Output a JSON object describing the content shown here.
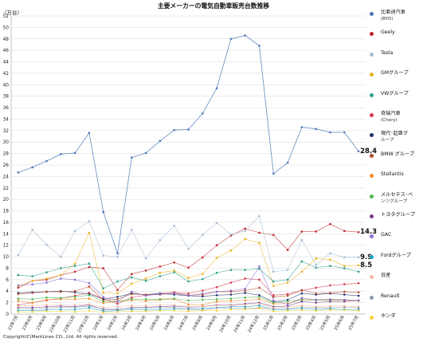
{
  "chart_data": {
    "type": "line",
    "title": "主要メーカーの電気自動車販売台数推移",
    "ylabel": "（万台）",
    "ylim": [
      0,
      52
    ],
    "yticks": [
      0,
      2,
      4,
      6,
      8,
      10,
      12,
      14,
      16,
      18,
      20,
      22,
      24,
      26,
      28,
      30,
      32,
      34,
      36,
      38,
      40,
      42,
      44,
      46,
      48,
      50,
      52
    ],
    "categories": [
      "23年7月",
      "23年8月",
      "23年9月",
      "23年10月",
      "23年11月",
      "23年12月",
      "24年1月",
      "24年2月",
      "24年3月",
      "24年4月",
      "24年5月",
      "24年6月",
      "24年7月",
      "24年8月",
      "24年9月",
      "24年10月",
      "24年11月",
      "24年12月",
      "25年1月",
      "25年2月",
      "25年3月",
      "25年4月",
      "25年5月",
      "25年6月",
      "25年7月"
    ],
    "series": [
      {
        "name": "比亜迪汽車",
        "sub": "(BYD)",
        "color": "#4a78b8",
        "values": [
          24.7,
          25.6,
          26.7,
          27.9,
          28.1,
          31.6,
          17.8,
          10.6,
          27.3,
          28.1,
          30.2,
          32.1,
          32.2,
          35.0,
          39.4,
          48.0,
          48.6,
          46.8,
          24.5,
          26.4,
          32.6,
          32.3,
          31.7,
          31.7,
          28.4
        ],
        "label": "28.4"
      },
      {
        "name": "Geely",
        "color": "#c0262d",
        "values": [
          4.6,
          5.8,
          6.0,
          6.8,
          7.4,
          8.2,
          8.0,
          4.2,
          7.0,
          7.6,
          8.3,
          9.0,
          8.1,
          9.9,
          12.0,
          13.7,
          14.9,
          14.2,
          13.8,
          11.2,
          14.4,
          14.4,
          15.7,
          14.5,
          14.3
        ],
        "label": "14.3"
      },
      {
        "name": "Tesla",
        "color": "#a4bcd6",
        "values": [
          10.3,
          14.7,
          12.1,
          10.0,
          14.5,
          16.2,
          10.2,
          10.0,
          14.7,
          9.7,
          12.9,
          15.4,
          11.4,
          13.8,
          15.9,
          13.9,
          14.5,
          17.1,
          7.4,
          7.7,
          12.9,
          8.6,
          10.6,
          9.9,
          9.9
        ],
        "label": "9.9"
      },
      {
        "name": "GMグループ",
        "color": "#e8b21c",
        "values": [
          4.9,
          5.8,
          6.2,
          6.8,
          8.8,
          14.2,
          3.7,
          3.6,
          5.3,
          6.2,
          7.2,
          7.6,
          6.3,
          7.0,
          9.8,
          11.1,
          13.1,
          12.4,
          4.9,
          5.5,
          7.4,
          9.7,
          9.5,
          8.4,
          8.5
        ],
        "label": "8.5"
      },
      {
        "name": "VWグループ",
        "color": "#2c9e8a",
        "values": [
          6.8,
          6.6,
          7.3,
          8.0,
          8.4,
          8.8,
          4.5,
          5.7,
          6.4,
          5.8,
          6.6,
          7.3,
          5.7,
          6.1,
          7.2,
          7.7,
          7.7,
          7.9,
          5.7,
          6.0,
          9.2,
          8.1,
          8.4,
          8.0,
          7.4
        ]
      },
      {
        "name": "奇瑞汽車",
        "sub": "(Chery)",
        "color": "#d5394f",
        "values": [
          1.6,
          2.0,
          2.4,
          2.8,
          3.2,
          3.7,
          2.7,
          1.8,
          2.9,
          3.3,
          3.6,
          3.8,
          3.6,
          4.1,
          4.7,
          5.5,
          6.2,
          6.0,
          3.3,
          3.5,
          4.1,
          4.6,
          5.0,
          5.2,
          5.4
        ]
      },
      {
        "name": "現代･起亜グ",
        "sub": "ループ",
        "color": "#1f2f6b",
        "values": [
          3.7,
          3.8,
          3.9,
          4.0,
          3.8,
          3.5,
          2.6,
          3.0,
          3.6,
          3.4,
          3.6,
          3.4,
          3.2,
          3.1,
          3.3,
          3.4,
          3.7,
          3.3,
          2.1,
          2.5,
          3.6,
          3.4,
          3.6,
          3.4,
          3.2
        ]
      },
      {
        "name": "BMW グループ",
        "color": "#b34a2e",
        "values": [
          3.5,
          3.7,
          3.9,
          3.9,
          4.0,
          4.8,
          2.4,
          2.6,
          3.5,
          3.4,
          3.4,
          3.7,
          3.3,
          3.4,
          3.9,
          3.9,
          4.1,
          4.6,
          3.0,
          3.2,
          4.2,
          3.6,
          3.7,
          3.9,
          3.8
        ]
      },
      {
        "name": "Stellantis",
        "color": "#f08a24",
        "values": [
          2.3,
          2.0,
          2.5,
          2.6,
          2.6,
          2.7,
          1.9,
          2.2,
          2.4,
          2.3,
          2.5,
          2.6,
          1.7,
          1.6,
          2.2,
          2.3,
          2.4,
          2.6,
          1.8,
          1.8,
          2.6,
          2.5,
          2.4,
          2.4,
          2.3
        ]
      },
      {
        "name": "メルセデス･ベ",
        "sub": "ンツグループ",
        "color": "#52b752",
        "values": [
          2.7,
          2.6,
          2.9,
          2.8,
          3.0,
          3.3,
          2.2,
          2.2,
          2.6,
          2.6,
          2.6,
          2.7,
          2.4,
          2.5,
          2.6,
          2.7,
          2.9,
          3.0,
          2.0,
          2.2,
          2.5,
          2.4,
          2.5,
          2.5,
          2.4
        ]
      },
      {
        "name": "トヨタグループ",
        "color": "#7a3a8a",
        "values": [
          1.2,
          1.1,
          1.3,
          1.4,
          1.3,
          1.6,
          0.8,
          0.8,
          1.1,
          1.2,
          1.3,
          1.4,
          1.2,
          1.3,
          1.6,
          1.6,
          1.8,
          2.0,
          1.3,
          1.4,
          2.2,
          2.0,
          2.2,
          2.2,
          2.4
        ]
      },
      {
        "name": "GAC",
        "color": "#8c6fd1",
        "values": [
          5.0,
          5.2,
          5.5,
          6.2,
          6.0,
          5.4,
          3.0,
          2.2,
          3.9,
          3.2,
          3.5,
          3.6,
          3.2,
          3.6,
          3.9,
          4.1,
          4.4,
          8.3,
          2.4,
          1.7,
          2.8,
          2.5,
          2.6,
          2.5,
          2.4
        ]
      },
      {
        "name": "Fordグループ",
        "color": "#15a3c8",
        "values": [
          0.6,
          0.6,
          0.7,
          0.8,
          0.8,
          1.1,
          0.5,
          0.6,
          0.8,
          0.7,
          0.8,
          0.9,
          0.9,
          1.0,
          1.1,
          1.3,
          1.3,
          1.5,
          0.8,
          0.8,
          1.0,
          0.8,
          0.9,
          0.8,
          0.8
        ]
      },
      {
        "name": "日産",
        "color": "#f0b8a8",
        "values": [
          1.4,
          1.5,
          1.6,
          1.6,
          1.6,
          1.7,
          1.2,
          1.3,
          1.5,
          1.5,
          1.6,
          1.6,
          1.3,
          1.3,
          1.5,
          1.5,
          1.6,
          1.8,
          1.1,
          1.2,
          1.5,
          1.3,
          1.4,
          1.4,
          1.3
        ]
      },
      {
        "name": "Renault",
        "color": "#8e9aa8",
        "values": [
          1.0,
          0.8,
          1.0,
          1.2,
          1.2,
          1.4,
          0.9,
          0.9,
          1.0,
          1.1,
          1.1,
          1.2,
          0.8,
          0.7,
          1.1,
          1.0,
          1.0,
          1.1,
          0.9,
          1.0,
          1.2,
          1.1,
          1.1,
          1.2,
          1.1
        ]
      },
      {
        "name": "ホンダ",
        "color": "#f5d23a",
        "values": [
          0.4,
          0.4,
          0.5,
          0.5,
          0.4,
          0.6,
          0.3,
          0.4,
          0.5,
          0.5,
          0.6,
          0.6,
          0.5,
          0.6,
          0.6,
          0.8,
          0.8,
          1.0,
          0.5,
          0.6,
          0.7,
          0.6,
          0.7,
          0.7,
          0.6
        ]
      }
    ],
    "grid": true,
    "legend_position": "right"
  },
  "footer": {
    "copyright": "Copyright(C)MarkLines CO., Ltd. All rights reserved."
  }
}
